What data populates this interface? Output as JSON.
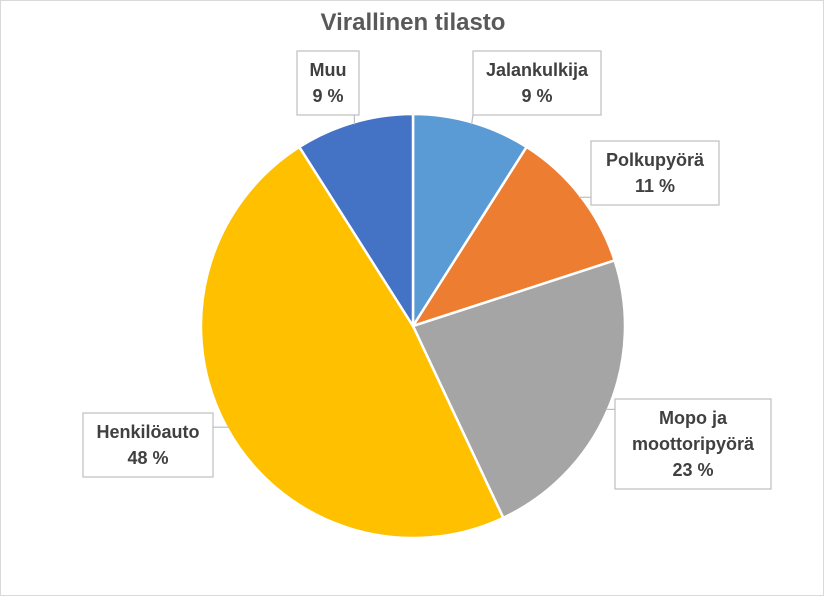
{
  "chart_data": {
    "type": "pie",
    "title": "Virallinen tilasto",
    "slices": [
      {
        "label": "Jalankulkija",
        "value": 9,
        "display": "9 %",
        "color": "#5b9bd5"
      },
      {
        "label": "Polkupyörä",
        "value": 11,
        "display": "11 %",
        "color": "#ed7d31"
      },
      {
        "label": "Mopo ja moottoripyörä",
        "label_lines": [
          "Mopo ja",
          "moottoripyörä"
        ],
        "value": 23,
        "display": "23 %",
        "color": "#a5a5a5"
      },
      {
        "label": "Henkilöauto",
        "value": 48,
        "display": "48 %",
        "color": "#ffc000"
      },
      {
        "label": "Muu",
        "value": 9,
        "display": "9 %",
        "color": "#4472c4"
      }
    ],
    "start_angle": "12 o'clock",
    "direction": "clockwise",
    "legend": "none",
    "data_labels": "callouts"
  }
}
